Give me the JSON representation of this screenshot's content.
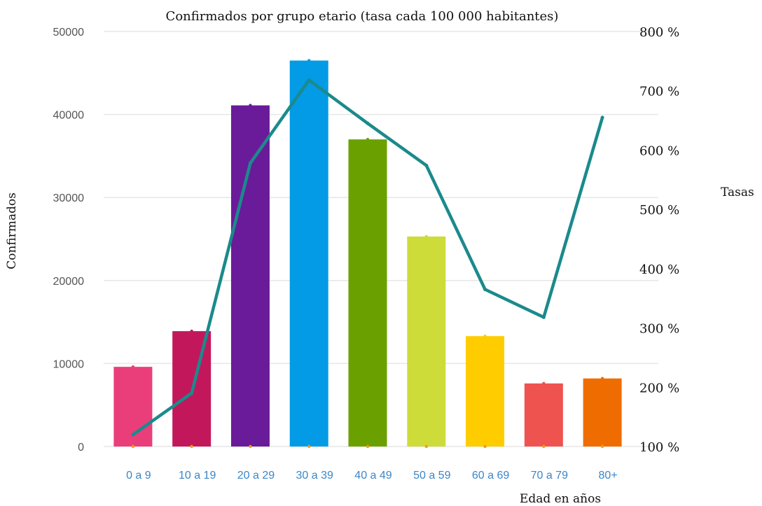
{
  "chart_data": {
    "type": "bar",
    "title": "Confirmados por grupo etario (tasa cada 100 000 habitantes)",
    "xlabel": "Edad en años",
    "ylabel": "Confirmados",
    "y2label": "Tasas",
    "categories": [
      "0 a 9",
      "10 a 19",
      "20 a 29",
      "30 a 39",
      "40 a 49",
      "50 a 59",
      "60 a 69",
      "70 a 79",
      "80+"
    ],
    "series": [
      {
        "type": "bar",
        "axis": "left",
        "values": [
          9600,
          13900,
          41100,
          46500,
          37000,
          25300,
          13300,
          7600,
          8200
        ],
        "colors": [
          "#ea3e7a",
          "#c2185b",
          "#6a1b9a",
          "#039be5",
          "#6aa100",
          "#cddc39",
          "#ffcc00",
          "#ef5350",
          "#ef6c00"
        ]
      },
      {
        "type": "line",
        "axis": "right",
        "values": [
          120,
          190,
          578,
          718,
          645,
          574,
          365,
          318,
          655
        ],
        "color": "#1b8a8c"
      }
    ],
    "ylim": [
      0,
      50000
    ],
    "yticks": [
      "0",
      "10000",
      "20000",
      "30000",
      "40000",
      "50000"
    ],
    "y2lim": [
      100,
      800
    ],
    "y2ticks": [
      "100 %",
      "200 %",
      "300 %",
      "400 %",
      "500 %",
      "600 %",
      "700 %",
      "800 %"
    ],
    "grid": true,
    "colors": {
      "grid": "#e6e6e6",
      "left_tick": "#555555",
      "x_tick": "#3a86c8",
      "text": "#111111"
    }
  }
}
